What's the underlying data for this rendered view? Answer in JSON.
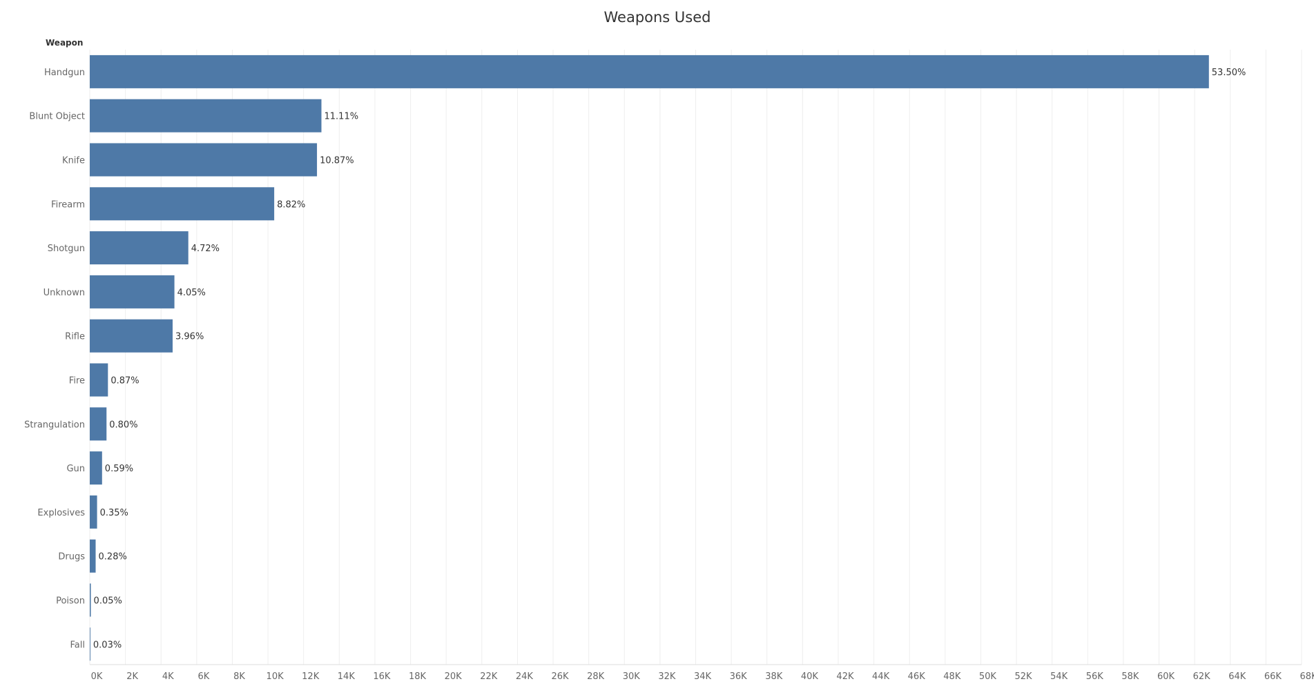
{
  "chart_data": {
    "type": "bar",
    "orientation": "horizontal",
    "title": "Weapons Used",
    "row_header": "Weapon",
    "categories": [
      "Handgun",
      "Blunt Object",
      "Knife",
      "Firearm",
      "Shotgun",
      "Unknown",
      "Rifle",
      "Fire",
      "Strangulation",
      "Gun",
      "Explosives",
      "Drugs",
      "Poison",
      "Fall"
    ],
    "values": [
      62800,
      13000,
      12750,
      10350,
      5530,
      4750,
      4650,
      1020,
      940,
      690,
      410,
      330,
      60,
      35
    ],
    "labels": [
      "53.50%",
      "11.11%",
      "10.87%",
      "8.82%",
      "4.72%",
      "4.05%",
      "3.96%",
      "0.87%",
      "0.80%",
      "0.59%",
      "0.35%",
      "0.28%",
      "0.05%",
      "0.03%"
    ],
    "xlim": [
      0,
      68000
    ],
    "xticks": [
      0,
      2000,
      4000,
      6000,
      8000,
      10000,
      12000,
      14000,
      16000,
      18000,
      20000,
      22000,
      24000,
      26000,
      28000,
      30000,
      32000,
      34000,
      36000,
      38000,
      40000,
      42000,
      44000,
      46000,
      48000,
      50000,
      52000,
      54000,
      56000,
      58000,
      60000,
      62000,
      64000,
      66000,
      68000
    ],
    "xtick_labels": [
      "0K",
      "2K",
      "4K",
      "6K",
      "8K",
      "10K",
      "12K",
      "14K",
      "16K",
      "18K",
      "20K",
      "22K",
      "24K",
      "26K",
      "28K",
      "30K",
      "32K",
      "34K",
      "36K",
      "38K",
      "40K",
      "42K",
      "44K",
      "46K",
      "48K",
      "50K",
      "52K",
      "54K",
      "56K",
      "58K",
      "60K",
      "62K",
      "64K",
      "66K",
      "68K"
    ],
    "grid": true,
    "bar_color": "#4e79a7"
  }
}
